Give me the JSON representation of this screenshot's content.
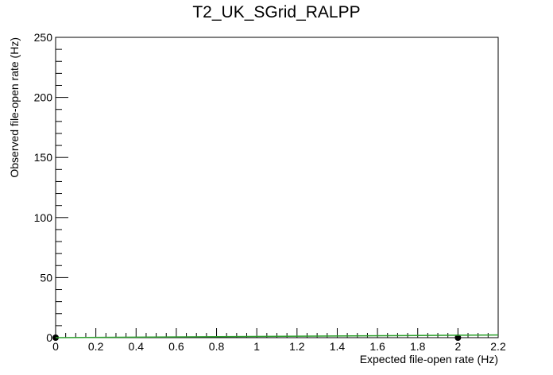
{
  "chart_data": {
    "type": "scatter",
    "title": "T2_UK_SGrid_RALPP",
    "xlabel": "Expected file-open rate (Hz)",
    "ylabel": "Observed file-open rate (Hz)",
    "xlim": [
      0,
      2.2
    ],
    "ylim": [
      0,
      250
    ],
    "x_ticks": [
      "0",
      "0.2",
      "0.4",
      "0.6",
      "0.8",
      "1",
      "1.2",
      "1.4",
      "1.6",
      "1.8",
      "2",
      "2.2"
    ],
    "y_ticks": [
      "0",
      "50",
      "100",
      "150",
      "200",
      "250"
    ],
    "grid": false,
    "legend": "none",
    "series": [
      {
        "kind": "points",
        "color": "#000000",
        "x": [
          0,
          2
        ],
        "y": [
          0,
          0
        ]
      },
      {
        "kind": "line",
        "color": "#2ca02c",
        "x": [
          0,
          2.2
        ],
        "y": [
          0,
          2.2
        ]
      }
    ]
  }
}
